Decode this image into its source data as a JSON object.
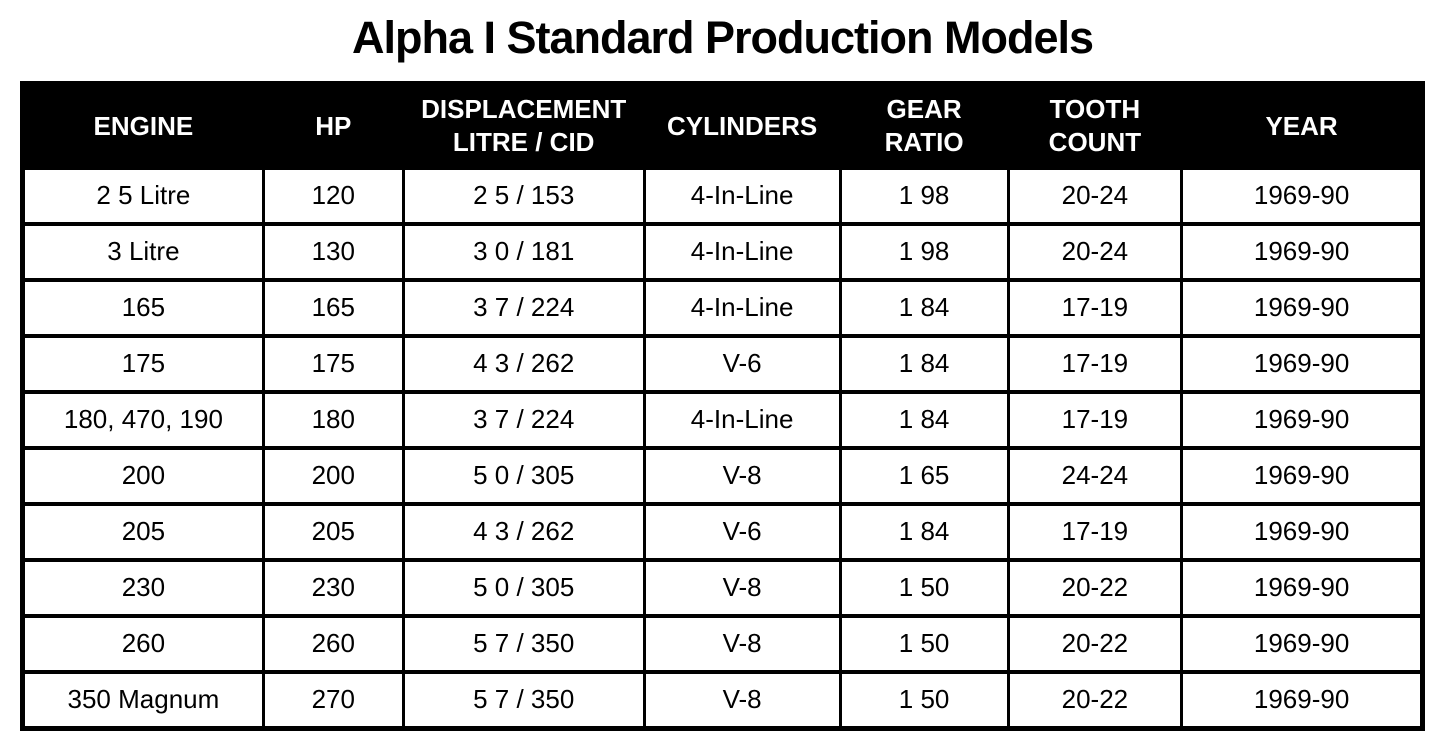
{
  "title": "Alpha I Standard Production Models",
  "colors": {
    "header_background": "#000000",
    "header_text": "#ffffff",
    "body_background": "#ffffff",
    "body_text": "#000000",
    "border": "#000000"
  },
  "table": {
    "columns": [
      "ENGINE",
      "HP",
      "DISPLACEMENT\nLITRE / CID",
      "CYLINDERS",
      "GEAR\nRATIO",
      "TOOTH\nCOUNT",
      "YEAR"
    ],
    "rows": [
      [
        "2 5 Litre",
        "120",
        "2 5 / 153",
        "4-In-Line",
        "1 98",
        "20-24",
        "1969-90"
      ],
      [
        "3 Litre",
        "130",
        "3 0 / 181",
        "4-In-Line",
        "1 98",
        "20-24",
        "1969-90"
      ],
      [
        "165",
        "165",
        "3 7 / 224",
        "4-In-Line",
        "1 84",
        "17-19",
        "1969-90"
      ],
      [
        "175",
        "175",
        "4 3 / 262",
        "V-6",
        "1 84",
        "17-19",
        "1969-90"
      ],
      [
        "180, 470, 190",
        "180",
        "3 7 / 224",
        "4-In-Line",
        "1 84",
        "17-19",
        "1969-90"
      ],
      [
        "200",
        "200",
        "5 0 / 305",
        "V-8",
        "1 65",
        "24-24",
        "1969-90"
      ],
      [
        "205",
        "205",
        "4 3 / 262",
        "V-6",
        "1 84",
        "17-19",
        "1969-90"
      ],
      [
        "230",
        "230",
        "5 0 / 305",
        "V-8",
        "1 50",
        "20-22",
        "1969-90"
      ],
      [
        "260",
        "260",
        "5 7 / 350",
        "V-8",
        "1 50",
        "20-22",
        "1969-90"
      ],
      [
        "350 Magnum",
        "270",
        "5 7 / 350",
        "V-8",
        "1 50",
        "20-22",
        "1969-90"
      ]
    ]
  }
}
